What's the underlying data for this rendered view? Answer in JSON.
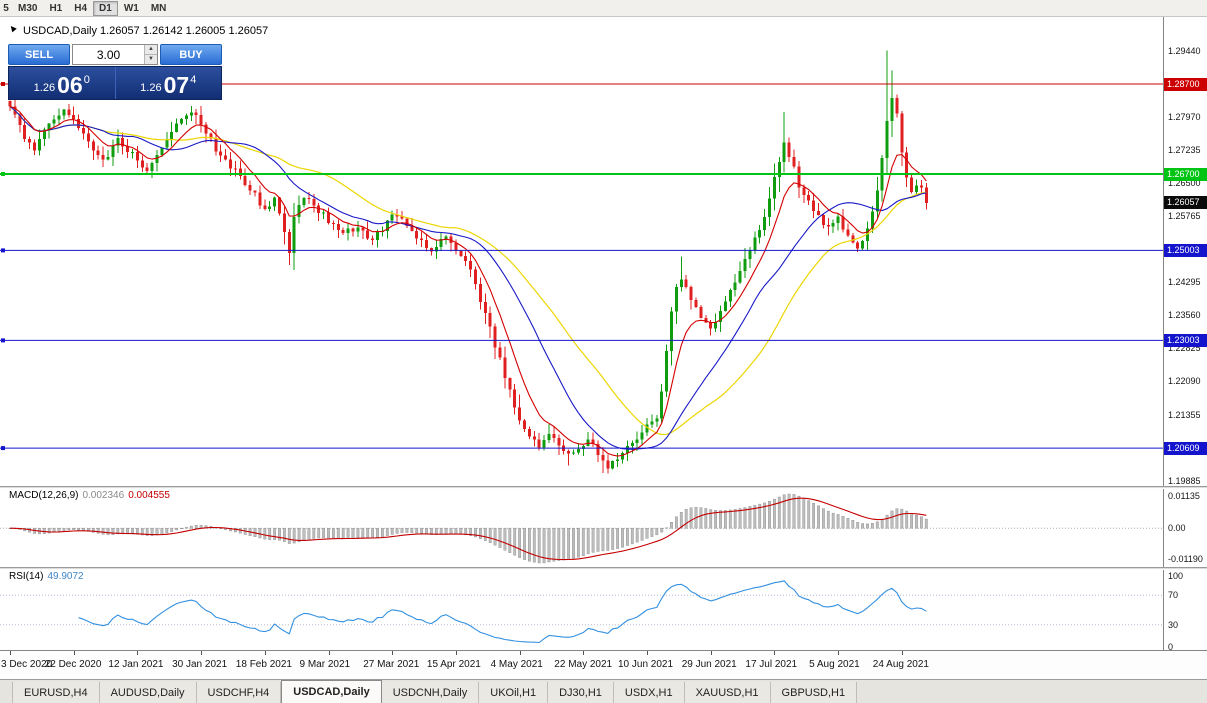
{
  "toolbar": {
    "timeframes": [
      {
        "label": "5",
        "active": false
      },
      {
        "label": "M30",
        "active": false
      },
      {
        "label": "H1",
        "active": false
      },
      {
        "label": "H4",
        "active": false
      },
      {
        "label": "D1",
        "active": true
      },
      {
        "label": "W1",
        "active": false
      },
      {
        "label": "MN",
        "active": false
      }
    ]
  },
  "chart": {
    "symbol_header": "USDCAD,Daily  1.26057 1.26142 1.26005 1.26057",
    "one_click": {
      "sell_label": "SELL",
      "buy_label": "BUY",
      "volume": "3.00",
      "sell_price_small": "1.26",
      "sell_price_big": "06",
      "sell_price_sup": "0",
      "buy_price_small": "1.26",
      "buy_price_big": "07",
      "buy_price_sup": "4"
    }
  },
  "chart_data": {
    "type": "candlestick",
    "symbol": "USDCAD",
    "timeframe": "Daily",
    "ohlc_header": {
      "open": "1.26057",
      "high": "1.26142",
      "low": "1.26005",
      "close": "1.26057"
    },
    "bars": 188,
    "colors": {
      "up": "#0f9d0f",
      "down": "#e02020",
      "ma_fast": "#d40000",
      "ma_mid": "#1818c8",
      "ma_slow": "#ecd600",
      "macd_hist": "#bdbdbd",
      "macd_signal": "#c40000",
      "rsi": "#3390e0"
    },
    "price_path": [
      [
        0,
        1.2825
      ],
      [
        3,
        1.2745
      ],
      [
        5,
        1.272
      ],
      [
        8,
        1.2785
      ],
      [
        11,
        1.2818
      ],
      [
        14,
        1.2778
      ],
      [
        17,
        1.2722
      ],
      [
        19,
        1.27
      ],
      [
        22,
        1.2746
      ],
      [
        25,
        1.2714
      ],
      [
        28,
        1.268
      ],
      [
        31,
        1.2723
      ],
      [
        34,
        1.279
      ],
      [
        37,
        1.2812
      ],
      [
        39,
        1.2779
      ],
      [
        42,
        1.2723
      ],
      [
        45,
        1.269
      ],
      [
        48,
        1.2646
      ],
      [
        50,
        1.2623
      ],
      [
        52,
        1.259
      ],
      [
        54,
        1.2612
      ],
      [
        56,
        1.2546
      ],
      [
        57,
        1.2495
      ],
      [
        58,
        1.2579
      ],
      [
        60,
        1.2623
      ],
      [
        62,
        1.2601
      ],
      [
        65,
        1.2568
      ],
      [
        68,
        1.2534
      ],
      [
        71,
        1.2557
      ],
      [
        73,
        1.2523
      ],
      [
        76,
        1.2546
      ],
      [
        78,
        1.2579
      ],
      [
        81,
        1.2557
      ],
      [
        83,
        1.2523
      ],
      [
        86,
        1.2501
      ],
      [
        89,
        1.2534
      ],
      [
        92,
        1.249
      ],
      [
        94,
        1.2457
      ],
      [
        96,
        1.239
      ],
      [
        98,
        1.2323
      ],
      [
        100,
        1.2257
      ],
      [
        102,
        1.219
      ],
      [
        104,
        1.2123
      ],
      [
        106,
        1.2085
      ],
      [
        108,
        1.2062
      ],
      [
        110,
        1.21
      ],
      [
        112,
        1.2068
      ],
      [
        114,
        1.2046
      ],
      [
        116,
        1.2057
      ],
      [
        118,
        1.2079
      ],
      [
        120,
        1.2046
      ],
      [
        122,
        1.2023
      ],
      [
        124,
        1.204
      ],
      [
        126,
        1.2062
      ],
      [
        128,
        1.2085
      ],
      [
        130,
        1.2105
      ],
      [
        132,
        1.2123
      ],
      [
        133,
        1.219
      ],
      [
        134,
        1.2279
      ],
      [
        135,
        1.2368
      ],
      [
        136,
        1.2412
      ],
      [
        137,
        1.2434
      ],
      [
        139,
        1.239
      ],
      [
        141,
        1.2346
      ],
      [
        143,
        1.2323
      ],
      [
        145,
        1.2368
      ],
      [
        147,
        1.2412
      ],
      [
        149,
        1.2457
      ],
      [
        151,
        1.2501
      ],
      [
        153,
        1.2546
      ],
      [
        155,
        1.2612
      ],
      [
        157,
        1.2701
      ],
      [
        158,
        1.2746
      ],
      [
        159,
        1.2712
      ],
      [
        161,
        1.2646
      ],
      [
        163,
        1.2612
      ],
      [
        165,
        1.2579
      ],
      [
        167,
        1.2546
      ],
      [
        169,
        1.2568
      ],
      [
        171,
        1.2534
      ],
      [
        173,
        1.2501
      ],
      [
        175,
        1.2546
      ],
      [
        176,
        1.259
      ],
      [
        177,
        1.2634
      ],
      [
        178,
        1.27
      ],
      [
        179,
        1.279
      ],
      [
        180,
        1.2846
      ],
      [
        181,
        1.28
      ],
      [
        182,
        1.271
      ],
      [
        183,
        1.2655
      ],
      [
        184,
        1.263
      ],
      [
        186,
        1.2645
      ],
      [
        187,
        1.26057
      ]
    ],
    "spikes": [
      {
        "bar": 57,
        "low": 1.2468
      },
      {
        "bar": 114,
        "low": 1.2022
      },
      {
        "bar": 121,
        "low": 1.2006
      },
      {
        "bar": 137,
        "high": 1.2487
      },
      {
        "bar": 158,
        "high": 1.2808
      },
      {
        "bar": 179,
        "high": 1.2944
      },
      {
        "bar": 180,
        "high": 1.29
      }
    ],
    "h_lines": [
      {
        "price": 1.287,
        "label": "1.28700",
        "color": "#cc0000",
        "width": 1
      },
      {
        "price": 1.267,
        "label": "1.26700",
        "color": "#00c414",
        "width": 2
      },
      {
        "price": 1.25003,
        "label": "1.25003",
        "color": "#1414cc",
        "width": 1
      },
      {
        "price": 1.23003,
        "label": "1.23003",
        "color": "#1414cc",
        "width": 1
      },
      {
        "price": 1.20609,
        "label": "1.20609",
        "color": "#1414cc",
        "width": 1
      }
    ],
    "current_price": {
      "label": "1.26057",
      "price": 1.26057,
      "color": "#0a0a0a"
    },
    "scale": [
      {
        "t": "1.29440",
        "p": 1.2944
      },
      {
        "t": "1.28705",
        "p": 1.28705
      },
      {
        "t": "1.27970",
        "p": 1.2797
      },
      {
        "t": "1.27235",
        "p": 1.27235
      },
      {
        "t": "1.26500",
        "p": 1.265
      },
      {
        "t": "1.25765",
        "p": 1.25765
      },
      {
        "t": "1.25030",
        "p": 1.2503
      },
      {
        "t": "1.24295",
        "p": 1.24295
      },
      {
        "t": "1.23560",
        "p": 1.2356
      },
      {
        "t": "1.22825",
        "p": 1.22825
      },
      {
        "t": "1.22090",
        "p": 1.2209
      },
      {
        "t": "1.21355",
        "p": 1.21355
      },
      {
        "t": "1.20620",
        "p": 1.2062
      },
      {
        "t": "1.19885",
        "p": 1.19885
      }
    ],
    "x_labels": [
      {
        "bar": 0,
        "text": "3 Dec 2020"
      },
      {
        "bar": 13,
        "text": "22 Dec 2020"
      },
      {
        "bar": 26,
        "text": "12 Jan 2021"
      },
      {
        "bar": 39,
        "text": "30 Jan 2021"
      },
      {
        "bar": 52,
        "text": "18 Feb 2021"
      },
      {
        "bar": 65,
        "text": "9 Mar 2021"
      },
      {
        "bar": 78,
        "text": "27 Mar 2021"
      },
      {
        "bar": 91,
        "text": "15 Apr 2021"
      },
      {
        "bar": 104,
        "text": "4 May 2021"
      },
      {
        "bar": 117,
        "text": "22 May 2021"
      },
      {
        "bar": 130,
        "text": "10 Jun 2021"
      },
      {
        "bar": 143,
        "text": "29 Jun 2021"
      },
      {
        "bar": 156,
        "text": "17 Jul 2021"
      },
      {
        "bar": 169,
        "text": "5 Aug 2021"
      },
      {
        "bar": 182,
        "text": "24 Aug 2021"
      }
    ],
    "macd": {
      "label": "MACD(12,26,9)",
      "v1": "0.002346",
      "v2": "0.004555",
      "fast": 12,
      "slow": 26,
      "signal": 9,
      "scale_top": "0.01135",
      "scale_zero": "0.00",
      "scale_bottom": "-0.01190"
    },
    "rsi": {
      "label": "RSI(14)",
      "value": "49.9072",
      "period": 14,
      "levels": [
        70,
        30
      ],
      "scale_labels": [
        "100",
        "70",
        "30",
        "0"
      ]
    }
  },
  "tabs": [
    {
      "label": "EURUSD,H4",
      "active": false
    },
    {
      "label": "AUDUSD,Daily",
      "active": false
    },
    {
      "label": "USDCHF,H4",
      "active": false
    },
    {
      "label": "USDCAD,Daily",
      "active": true
    },
    {
      "label": "USDCNH,Daily",
      "active": false
    },
    {
      "label": "UKOil,H1",
      "active": false
    },
    {
      "label": "DJ30,H1",
      "active": false
    },
    {
      "label": "USDX,H1",
      "active": false
    },
    {
      "label": "XAUUSD,H1",
      "active": false
    },
    {
      "label": "GBPUSD,H1",
      "active": false
    }
  ]
}
